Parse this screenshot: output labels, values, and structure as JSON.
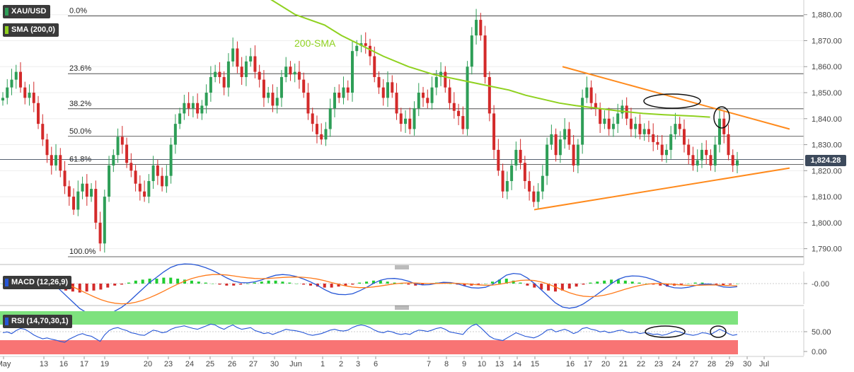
{
  "symbol": "XAU/USD",
  "colors": {
    "up": "#2e9e57",
    "down": "#d32a2a",
    "sma": "#8fd11f",
    "trend": "#ff8a1c",
    "macd_line": "#2656d6",
    "signal_line": "#ff7a1a",
    "rsi_line": "#2656d6",
    "overbought": "#7ee27e",
    "oversold": "#f87474"
  },
  "legend": {
    "sma_label": "SMA (200,0)",
    "sma_annotation": "200-SMA",
    "macd_label": "MACD (12,26,9)",
    "rsi_label": "RSI (14,70,30,1)"
  },
  "current_price": "1,824.28",
  "chart_data": [
    {
      "type": "candlestick",
      "title": "XAU/USD",
      "y_ticks": [
        "1,790.00",
        "1,800.00",
        "1,810.00",
        "1,820.00",
        "1,830.00",
        "1,840.00",
        "1,850.00",
        "1,860.00",
        "1,870.00",
        "1,880.00"
      ],
      "y_tick_values": [
        1790,
        1800,
        1810,
        1820,
        1830,
        1840,
        1850,
        1860,
        1870,
        1880
      ],
      "ylim": [
        1785,
        1884
      ],
      "x_ticks": [
        "May",
        "13",
        "16",
        "17",
        "19",
        "20",
        "23",
        "24",
        "25",
        "26",
        "27",
        "30",
        "Jun",
        "1",
        "2",
        "3",
        "6",
        "7",
        "8",
        "9",
        "10",
        "13",
        "14",
        "15",
        "16",
        "17",
        "20",
        "21",
        "22",
        "23",
        "24",
        "27",
        "28",
        "29",
        "30",
        "Jul"
      ],
      "fibonacci": [
        {
          "label": "0.0%",
          "value": 1879.5
        },
        {
          "label": "23.6%",
          "value": 1857.3
        },
        {
          "label": "38.2%",
          "value": 1843.8
        },
        {
          "label": "50.0%",
          "value": 1833.2
        },
        {
          "label": "61.8%",
          "value": 1822.4
        },
        {
          "label": "100.0%",
          "value": 1786.9
        }
      ],
      "current_price": 1824.28,
      "candles_close": [
        1848,
        1852,
        1855,
        1858,
        1852,
        1848,
        1850,
        1846,
        1838,
        1832,
        1826,
        1822,
        1826,
        1820,
        1814,
        1810,
        1805,
        1812,
        1815,
        1810,
        1813,
        1800,
        1792,
        1810,
        1822,
        1826,
        1833,
        1830,
        1823,
        1820,
        1815,
        1812,
        1810,
        1816,
        1822,
        1818,
        1814,
        1818,
        1830,
        1838,
        1842,
        1846,
        1844,
        1846,
        1842,
        1845,
        1850,
        1856,
        1858,
        1856,
        1852,
        1862,
        1867,
        1860,
        1856,
        1862,
        1864,
        1858,
        1855,
        1848,
        1850,
        1845,
        1848,
        1856,
        1860,
        1857,
        1858,
        1855,
        1850,
        1842,
        1838,
        1834,
        1832,
        1836,
        1844,
        1850,
        1848,
        1852,
        1850,
        1866,
        1868,
        1869,
        1868,
        1864,
        1856,
        1852,
        1848,
        1854,
        1850,
        1842,
        1838,
        1840,
        1836,
        1844,
        1850,
        1848,
        1846,
        1852,
        1856,
        1858,
        1852,
        1846,
        1843,
        1841,
        1836,
        1860,
        1872,
        1878,
        1872,
        1856,
        1842,
        1828,
        1820,
        1812,
        1816,
        1822,
        1828,
        1823,
        1816,
        1812,
        1808,
        1812,
        1818,
        1830,
        1834,
        1826,
        1832,
        1836,
        1830,
        1822,
        1830,
        1848,
        1852,
        1846,
        1844,
        1838,
        1840,
        1836,
        1838,
        1842,
        1845,
        1840,
        1836,
        1838,
        1834,
        1836,
        1834,
        1831,
        1830,
        1826,
        1828,
        1834,
        1838,
        1836,
        1830,
        1826,
        1822,
        1824,
        1828,
        1826,
        1822,
        1830,
        1840,
        1834,
        1826,
        1822,
        1824
      ],
      "sma200": [
        [
          1842,
          1888
        ],
        [
          1858,
          1880
        ],
        [
          1872,
          1876
        ],
        [
          1880,
          1872
        ],
        [
          1890,
          1868
        ],
        [
          1900,
          1864
        ],
        [
          1912,
          1860
        ],
        [
          1924,
          1857
        ],
        [
          1936,
          1855
        ],
        [
          1948,
          1853
        ],
        [
          1960,
          1851
        ],
        [
          1968,
          1849
        ],
        [
          1976,
          1847.5
        ],
        [
          1984,
          1846
        ],
        [
          1992,
          1845
        ],
        [
          2000,
          1844.2
        ],
        [
          2012,
          1843
        ],
        [
          2024,
          1842
        ],
        [
          2034,
          1841.5
        ],
        [
          2048,
          1841
        ],
        [
          2056,
          1840.6
        ]
      ],
      "trendlines": [
        {
          "from": [
            1814,
            1860
          ],
          "to": [
            2070,
            1836
          ]
        },
        {
          "from": [
            1814,
            1805
          ],
          "to": [
            2070,
            1821
          ]
        }
      ]
    },
    {
      "type": "macd",
      "title": "MACD (12,26,9)",
      "value_label": "-0.00",
      "histogram": [
        0,
        1,
        2,
        3,
        2,
        1,
        -1,
        -3,
        -5,
        -7,
        -8,
        -9,
        -8,
        -7,
        -6,
        -4,
        -2,
        -1,
        1,
        3,
        4,
        5,
        5,
        6,
        6,
        5,
        4,
        3,
        2,
        1,
        0,
        -1,
        -2,
        -2,
        -1,
        0,
        1,
        2,
        3,
        3,
        2,
        1,
        0,
        -1,
        -2,
        -3,
        -4,
        -4,
        -3,
        -2,
        -1,
        1,
        2,
        3,
        3,
        2,
        1,
        0,
        -1,
        -2,
        -1,
        0,
        1,
        1,
        0,
        -1,
        -2,
        -2,
        -1,
        0,
        2,
        4,
        5,
        3,
        1,
        -2,
        -4,
        -6,
        -7,
        -8,
        -7,
        -5,
        -3,
        -1,
        1,
        2,
        3,
        4,
        4,
        3,
        2,
        1,
        0,
        -1,
        -2,
        -3,
        -2,
        -1,
        0,
        1,
        1,
        0,
        -1,
        -2,
        -1,
        0
      ]
    },
    {
      "type": "rsi",
      "title": "RSI (14,70,30,1)",
      "y_ticks": [
        "50.00",
        "0.00"
      ],
      "y_tick_values": [
        50,
        0
      ],
      "ylim": [
        0,
        100
      ],
      "overbought": 70,
      "oversold": 30,
      "values": [
        50,
        52,
        48,
        55,
        60,
        58,
        52,
        45,
        40,
        36,
        38,
        35,
        33,
        30,
        28,
        35,
        40,
        45,
        48,
        44,
        42,
        36,
        30,
        45,
        55,
        60,
        62,
        58,
        55,
        50,
        48,
        45,
        44,
        50,
        56,
        54,
        50,
        52,
        58,
        62,
        64,
        66,
        63,
        60,
        58,
        62,
        66,
        70,
        68,
        62,
        58,
        64,
        68,
        62,
        58,
        60,
        62,
        55,
        52,
        48,
        50,
        46,
        50,
        54,
        58,
        56,
        55,
        53,
        50,
        46,
        44,
        46,
        48,
        52,
        56,
        58,
        55,
        54,
        56,
        62,
        66,
        68,
        66,
        62,
        56,
        52,
        50,
        54,
        52,
        48,
        46,
        48,
        46,
        52,
        56,
        55,
        53,
        56,
        60,
        62,
        58,
        52,
        50,
        48,
        46,
        58,
        66,
        70,
        62,
        52,
        42,
        36,
        34,
        32,
        38,
        44,
        50,
        46,
        42,
        40,
        38,
        42,
        48,
        56,
        58,
        52,
        55,
        58,
        54,
        48,
        52,
        60,
        62,
        58,
        56,
        52,
        54,
        50,
        52,
        55,
        56,
        52,
        50,
        52,
        48,
        50,
        49,
        46,
        47,
        44,
        46,
        50,
        54,
        52,
        48,
        46,
        44,
        46,
        50,
        49,
        46,
        52,
        58,
        54,
        48,
        44,
        46
      ]
    }
  ]
}
